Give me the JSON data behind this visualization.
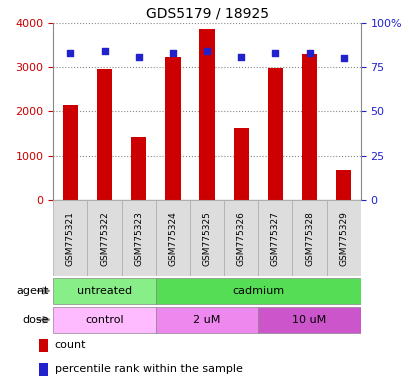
{
  "title": "GDS5179 / 18925",
  "samples": [
    "GSM775321",
    "GSM775322",
    "GSM775323",
    "GSM775324",
    "GSM775325",
    "GSM775326",
    "GSM775327",
    "GSM775328",
    "GSM775329"
  ],
  "counts": [
    2150,
    2960,
    1430,
    3230,
    3870,
    1620,
    2980,
    3290,
    680
  ],
  "percentiles": [
    83,
    84,
    81,
    83,
    84,
    81,
    83,
    83,
    80
  ],
  "ylim_left": [
    0,
    4000
  ],
  "ylim_right": [
    0,
    100
  ],
  "yticks_left": [
    0,
    1000,
    2000,
    3000,
    4000
  ],
  "ytick_labels_left": [
    "0",
    "1000",
    "2000",
    "3000",
    "4000"
  ],
  "yticks_right": [
    0,
    25,
    50,
    75,
    100
  ],
  "ytick_labels_right": [
    "0",
    "25",
    "50",
    "75",
    "100%"
  ],
  "bar_color": "#cc0000",
  "marker_color": "#2222cc",
  "agent_groups": [
    {
      "label": "untreated",
      "start": 0,
      "end": 3,
      "color": "#88ee88"
    },
    {
      "label": "cadmium",
      "start": 3,
      "end": 9,
      "color": "#55dd55"
    }
  ],
  "dose_groups": [
    {
      "label": "control",
      "start": 0,
      "end": 3,
      "color": "#ffbbff"
    },
    {
      "label": "2 uM",
      "start": 3,
      "end": 6,
      "color": "#ee88ee"
    },
    {
      "label": "10 uM",
      "start": 6,
      "end": 9,
      "color": "#cc55cc"
    }
  ],
  "legend_count_color": "#cc0000",
  "legend_pct_color": "#2222cc",
  "grid_color": "#888888",
  "tick_label_color_left": "#cc0000",
  "tick_label_color_right": "#2222cc",
  "bar_width": 0.45,
  "sample_bg_color": "#dddddd",
  "sample_label_fontsize": 6.5,
  "arrow_color": "#888888"
}
